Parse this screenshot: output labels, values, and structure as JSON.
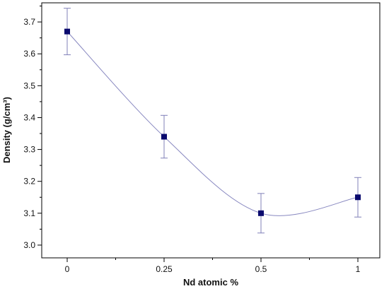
{
  "chart_data": {
    "type": "scatter",
    "title": "",
    "xlabel": "Nd atomic %",
    "ylabel": "Density (g/cm³)",
    "x_tick_labels": [
      "0",
      "0.25",
      "0.5",
      "1"
    ],
    "ylim": [
      2.96,
      3.76
    ],
    "y_ticks": [
      3.0,
      3.1,
      3.2,
      3.3,
      3.4,
      3.5,
      3.6,
      3.7
    ],
    "y_tick_labels": [
      "3.0",
      "3.1",
      "3.2",
      "3.3",
      "3.4",
      "3.5",
      "3.6",
      "3.7"
    ],
    "fit_curve": "smooth",
    "grid": false,
    "legend": "none",
    "series": [
      {
        "x": [
          "0",
          "0.25",
          "0.5",
          "1"
        ],
        "values": [
          3.67,
          3.34,
          3.1,
          3.15
        ],
        "error": [
          0.073,
          0.067,
          0.062,
          0.062
        ],
        "marker": "square",
        "marker_color": "#0a0a6e",
        "line_color": "#8888c0",
        "error_color": "#8080b8"
      }
    ]
  }
}
